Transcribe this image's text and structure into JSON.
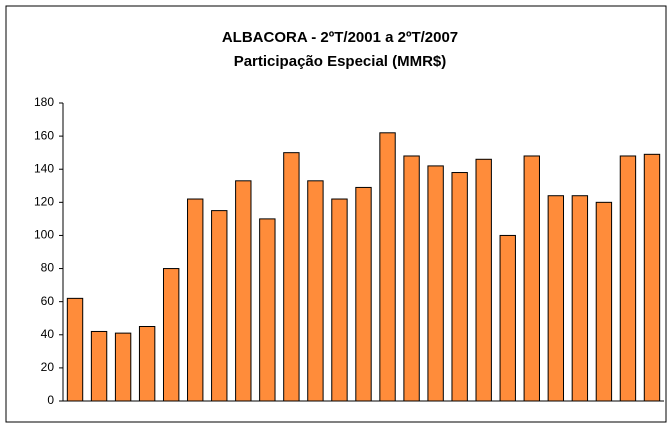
{
  "chart_data": {
    "type": "bar",
    "title": "ALBACORA - 2ºT/2001 a 2ºT/2007",
    "subtitle": "Participação Especial (MMR$)",
    "categories": [
      null,
      null,
      null,
      null,
      null,
      null,
      null,
      null,
      null,
      null,
      null,
      null,
      null,
      null,
      null,
      null,
      null,
      null,
      null,
      null,
      null,
      null,
      null,
      null,
      null
    ],
    "values": [
      62,
      42,
      41,
      45,
      80,
      122,
      115,
      133,
      110,
      150,
      133,
      122,
      129,
      162,
      148,
      142,
      138,
      146,
      100,
      148,
      124,
      124,
      120,
      148,
      149
    ],
    "color": "#ff8c3a",
    "ylim": [
      0,
      180
    ],
    "yticks": [
      0,
      20,
      40,
      60,
      80,
      100,
      120,
      140,
      160,
      180
    ],
    "grid": false
  }
}
